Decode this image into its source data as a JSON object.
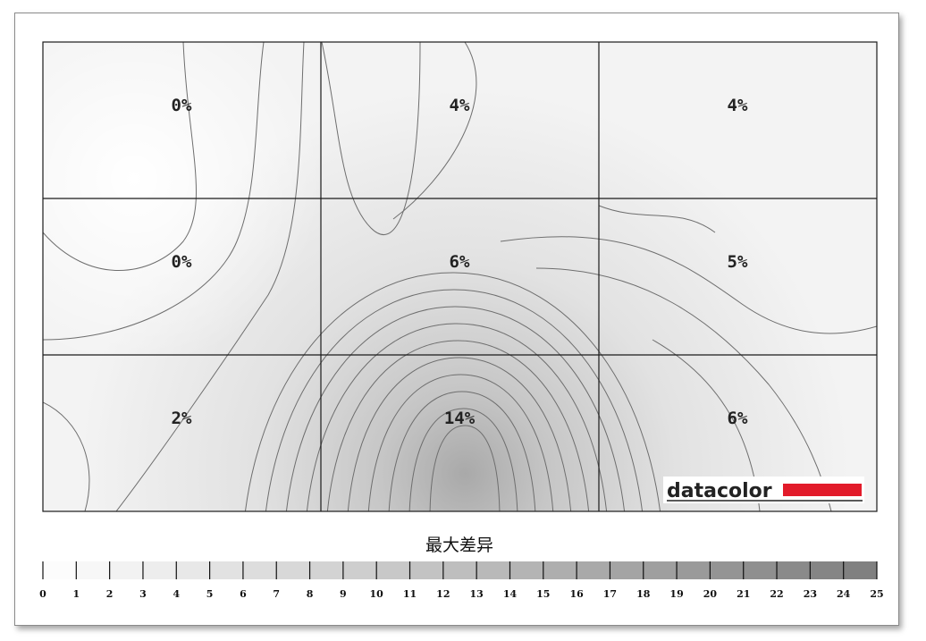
{
  "chart_data": {
    "type": "heatmap",
    "rows": 3,
    "cols": 3,
    "values": [
      [
        0,
        4,
        4
      ],
      [
        0,
        6,
        5
      ],
      [
        2,
        14,
        6
      ]
    ],
    "cell_labels": [
      [
        "0%",
        "4%",
        "4%"
      ],
      [
        "0%",
        "6%",
        "5%"
      ],
      [
        "2%",
        "14%",
        "6%"
      ]
    ],
    "legend_title": "最大差异",
    "legend_ticks": [
      "0",
      "1",
      "2",
      "3",
      "4",
      "5",
      "6",
      "7",
      "8",
      "9",
      "10",
      "11",
      "12",
      "13",
      "14",
      "15",
      "16",
      "17",
      "18",
      "19",
      "20",
      "21",
      "22",
      "23",
      "24",
      "25"
    ],
    "legend_range": [
      0,
      25
    ],
    "colormap": {
      "low": "#ffffff",
      "high": "#7d7d7d"
    },
    "contour_color": "#6e6e6e",
    "grid_color": "#1a1a1a"
  },
  "logo": {
    "text": "datacolor",
    "bar_color": "#e21b2a"
  }
}
